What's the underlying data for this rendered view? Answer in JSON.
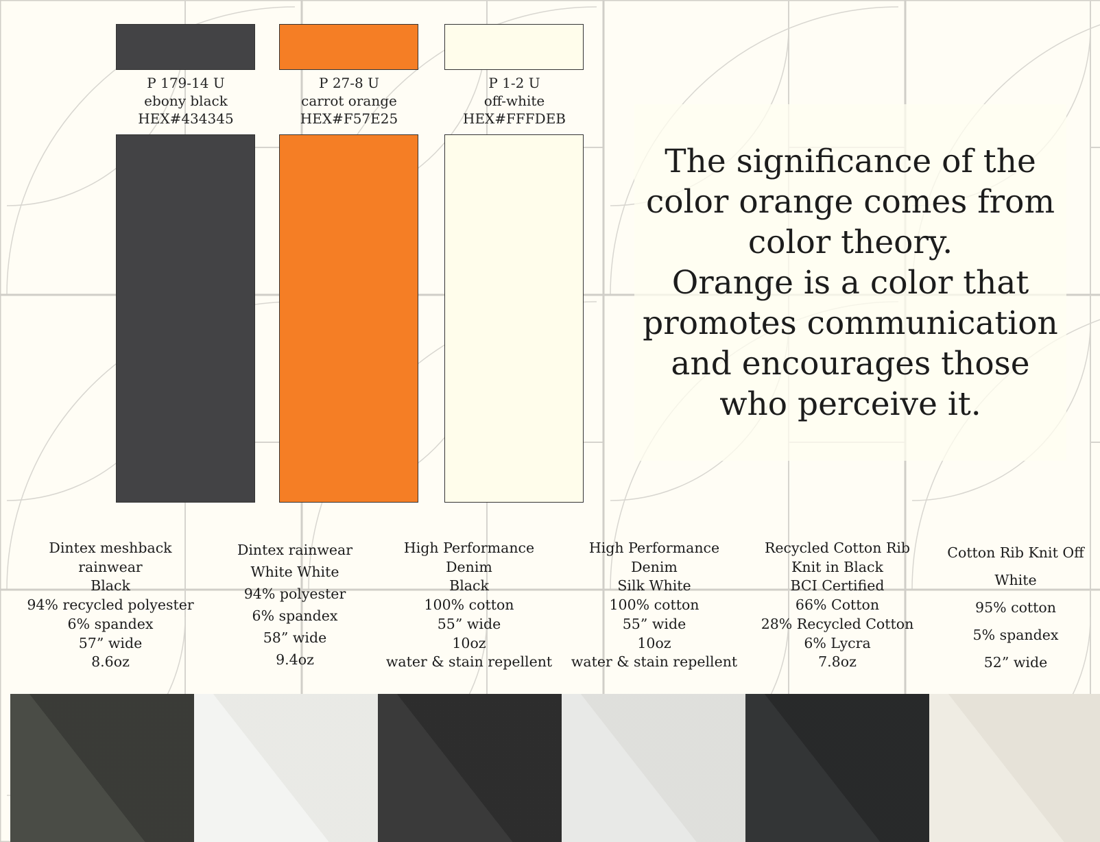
{
  "swatches": [
    {
      "code": "P 179-14 U",
      "name": "ebony black",
      "hex_label": "HEX#434345",
      "color": "#434345"
    },
    {
      "code": "P 27-8 U",
      "name": "carrot orange",
      "hex_label": "HEX#F57E25",
      "color": "#F57E25"
    },
    {
      "code": "P 1-2 U",
      "name": "off-white",
      "hex_label": "HEX#FFFDEB",
      "color": "#FFFDEB"
    }
  ],
  "quote": {
    "lines": [
      "The significance of the",
      "color orange comes from",
      "color theory.",
      "Orange is a color that",
      "promotes communication",
      "and encourages those",
      "who perceive it."
    ]
  },
  "fabrics": [
    {
      "lines": [
        "Dintex meshback",
        "rainwear",
        "Black",
        "94% recycled polyester",
        "6% spandex",
        "57” wide",
        "8.6oz"
      ],
      "photo_color": "#4a4c46"
    },
    {
      "lines": [
        "Dintex rainwear",
        "White White",
        "94% polyester",
        "6% spandex",
        "58” wide",
        "9.4oz"
      ],
      "photo_color": "#f3f4f2"
    },
    {
      "lines": [
        "High Performance",
        "Denim",
        "Black",
        "100% cotton",
        "55” wide",
        "10oz",
        "water & stain repellent"
      ],
      "photo_color": "#3a3a3a"
    },
    {
      "lines": [
        "High Performance",
        "Denim",
        "Silk White",
        "100% cotton",
        "55” wide",
        "10oz",
        "water & stain repellent"
      ],
      "photo_color": "#e8e9e7"
    },
    {
      "lines": [
        "Recycled Cotton Rib",
        "Knit in Black",
        "BCI Certified",
        "66% Cotton",
        "28% Recycled Cotton",
        "6% Lycra",
        "7.8oz"
      ],
      "photo_color": "#333536"
    },
    {
      "lines": [
        "Cotton Rib Knit Off",
        "White",
        "95% cotton",
        "5% spandex",
        "52” wide"
      ],
      "photo_color": "#efece3"
    }
  ]
}
